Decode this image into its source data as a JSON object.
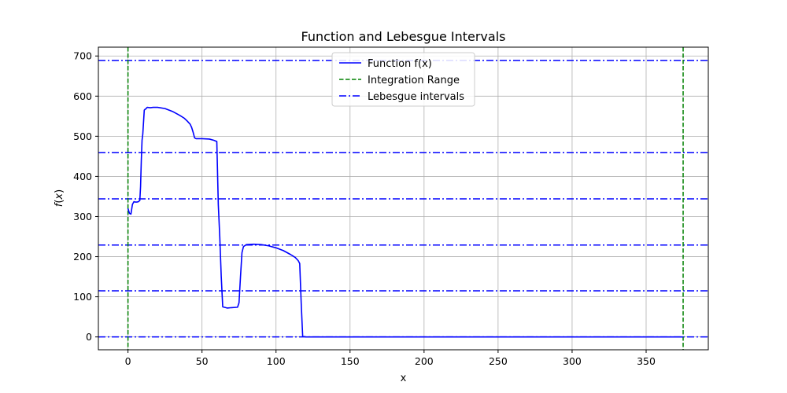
{
  "chart_data": {
    "type": "line",
    "title": "Function and Lebesgue Intervals",
    "xlabel": "x",
    "ylabel": "f(x)",
    "xlim": [
      -20,
      392
    ],
    "ylim": [
      -32,
      722
    ],
    "xticks": [
      0,
      50,
      100,
      150,
      200,
      250,
      300,
      350
    ],
    "yticks": [
      0,
      100,
      200,
      300,
      400,
      500,
      600,
      700
    ],
    "grid": true,
    "legend_position": "top-center",
    "series": [
      {
        "name": "Function f(x)",
        "color": "#0000ff",
        "style": "solid",
        "x": [
          0,
          1,
          2,
          3,
          4,
          5,
          6,
          7,
          8,
          8.5,
          9,
          9.5,
          10,
          11,
          11.5,
          12,
          13,
          15,
          17,
          20,
          25,
          30,
          35,
          38,
          40,
          42,
          43,
          44,
          45,
          46,
          48,
          50,
          55,
          58,
          60,
          61,
          62,
          63,
          64,
          65,
          67,
          70,
          74,
          75,
          76,
          77,
          78,
          80,
          85,
          90,
          95,
          100,
          105,
          110,
          113,
          115,
          116,
          117,
          118,
          120,
          150,
          200,
          250,
          300,
          350,
          375
        ],
        "y": [
          320,
          308,
          306,
          330,
          337,
          336,
          336,
          337,
          340,
          375,
          440,
          490,
          505,
          565,
          567,
          568,
          572,
          571,
          572,
          572,
          569,
          562,
          552,
          545,
          538,
          530,
          522,
          510,
          496,
          494,
          494,
          494,
          493,
          490,
          487,
          330,
          250,
          150,
          75,
          74,
          72,
          73,
          74,
          85,
          150,
          210,
          225,
          230,
          231,
          230,
          227,
          222,
          215,
          205,
          198,
          190,
          183,
          85,
          2,
          0,
          0,
          0,
          0,
          0,
          0,
          0
        ]
      }
    ],
    "vertical_lines": {
      "name": "Integration Range",
      "color": "#008000",
      "style": "dashed",
      "x": [
        0,
        375
      ]
    },
    "horizontal_lines": {
      "name": "Lebesgue intervals",
      "color": "#0000ff",
      "style": "dashdot",
      "y": [
        0,
        115,
        229,
        344,
        459,
        689
      ]
    }
  }
}
